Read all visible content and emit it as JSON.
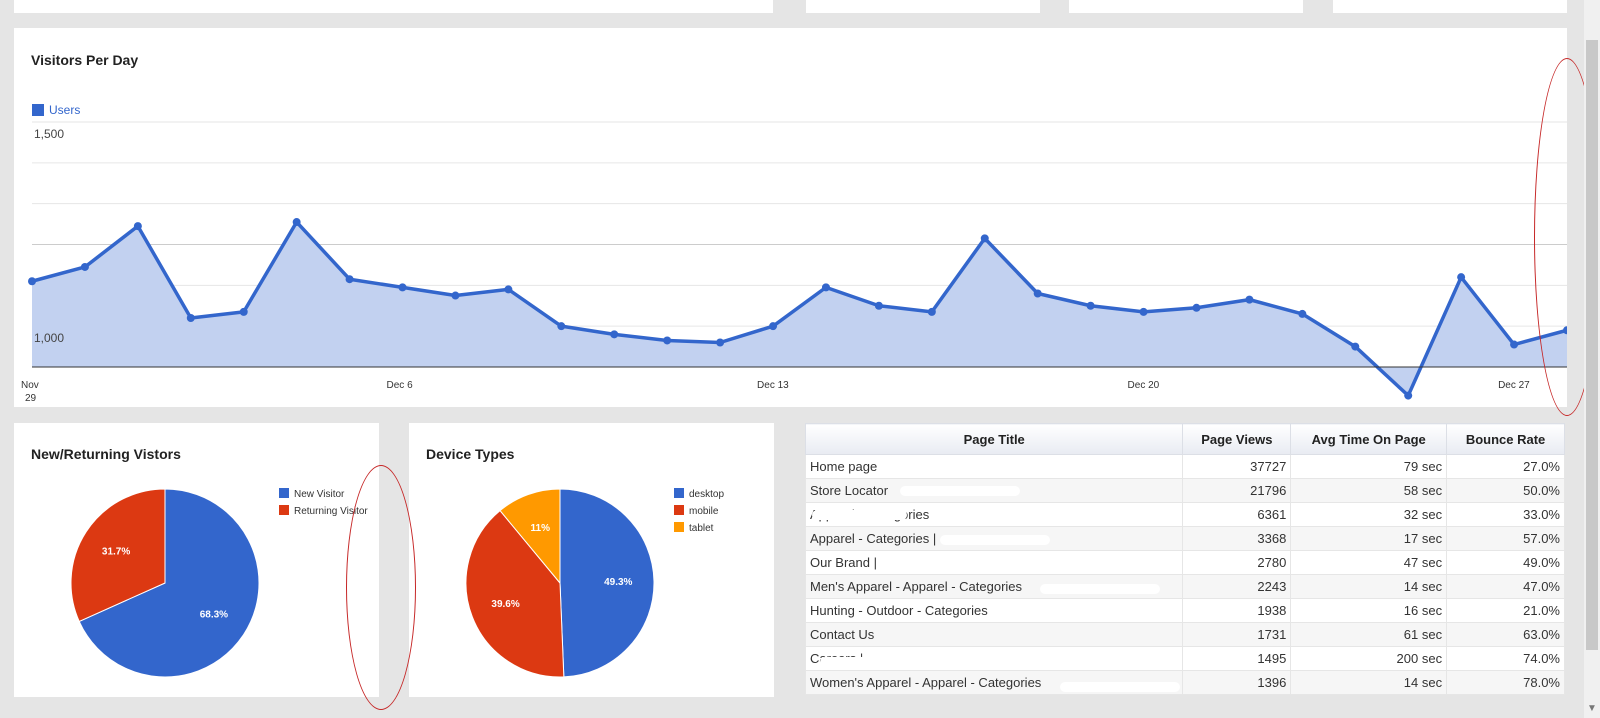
{
  "line_chart": {
    "title": "Visitors Per Day",
    "chart_data": {
      "type": "area",
      "title": "Visitors Per Day",
      "series": [
        {
          "name": "Users",
          "values": [
            1110,
            1145,
            1245,
            1020,
            1035,
            1255,
            1115,
            1095,
            1075,
            1090,
            1000,
            980,
            965,
            960,
            1000,
            1095,
            1050,
            1035,
            1215,
            1080,
            1050,
            1035,
            1045,
            1065,
            1030,
            950,
            830,
            1120,
            955,
            990
          ]
        }
      ],
      "x_labels": [
        "Nov\n29",
        "Dec 6",
        "Dec 13",
        "Dec 20",
        "Dec 27"
      ],
      "y_ticks": [
        "1,000",
        "1,500"
      ],
      "ylim": [
        900,
        1500
      ],
      "grid": true,
      "legend": "top-left",
      "color": "#3366cc"
    }
  },
  "pie_new_returning": {
    "title": "New/Returning Vistors",
    "chart_data": {
      "type": "pie",
      "labels": [
        "New Visitor",
        "Returning Visitor"
      ],
      "values": [
        68.3,
        31.7
      ],
      "value_labels": [
        "68.3%",
        "31.7%"
      ],
      "colors": [
        "#3366cc",
        "#dc3912"
      ],
      "legend": "right"
    }
  },
  "pie_device": {
    "title": "Device Types",
    "chart_data": {
      "type": "pie",
      "labels": [
        "desktop",
        "mobile",
        "tablet"
      ],
      "values": [
        49.3,
        39.6,
        11
      ],
      "value_labels": [
        "49.3%",
        "39.6%",
        "11%"
      ],
      "colors": [
        "#3366cc",
        "#dc3912",
        "#ff9900"
      ],
      "legend": "right"
    }
  },
  "pages_table": {
    "headers": [
      "Page Title",
      "Page Views",
      "Avg Time On Page",
      "Bounce Rate"
    ],
    "rows": [
      [
        "Home page",
        "37727",
        "79 sec",
        "27.0%"
      ],
      [
        "Store Locator",
        "21796",
        "58 sec",
        "50.0%"
      ],
      [
        "Apparel - Categories",
        "6361",
        "32 sec",
        "33.0%"
      ],
      [
        "Apparel - Categories |",
        "3368",
        "17 sec",
        "57.0%"
      ],
      [
        "Our Brand |",
        "2780",
        "47 sec",
        "49.0%"
      ],
      [
        "Men's Apparel - Apparel - Categories",
        "2243",
        "14 sec",
        "47.0%"
      ],
      [
        "Hunting - Outdoor - Categories",
        "1938",
        "16 sec",
        "21.0%"
      ],
      [
        "Contact Us",
        "1731",
        "61 sec",
        "63.0%"
      ],
      [
        "Careers |",
        "1495",
        "200 sec",
        "74.0%"
      ],
      [
        "Women's Apparel - Apparel - Categories",
        "1396",
        "14 sec",
        "78.0%"
      ]
    ]
  },
  "colors": {
    "blue": "#3366cc",
    "red": "#dc3912",
    "orange": "#ff9900",
    "area_fill": "#c2d1f0",
    "annotation": "#c62828"
  }
}
